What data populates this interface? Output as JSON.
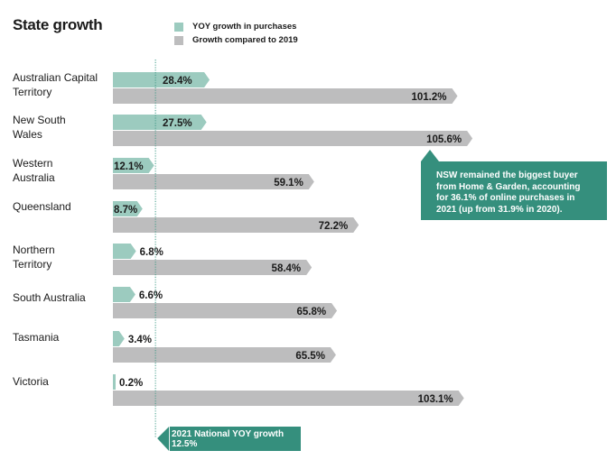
{
  "chart_data": {
    "type": "bar",
    "orientation": "horizontal",
    "title": "State growth",
    "xlabel": "",
    "ylabel": "",
    "xlim": [
      0,
      110
    ],
    "grid": false,
    "legend_position": "top",
    "categories": [
      "Australian Capital\nTerritory",
      "New South\nWales",
      "Western\nAustralia",
      "Queensland",
      "Northern\nTerritory",
      "South Australia",
      "Tasmania",
      "Victoria"
    ],
    "series": [
      {
        "name": "YOY growth in purchases",
        "color": "#9ccbbf",
        "values": [
          28.4,
          27.5,
          12.1,
          8.7,
          6.8,
          6.6,
          3.4,
          0.2
        ],
        "labels": [
          "28.4%",
          "27.5%",
          "12.1%",
          "8.7%",
          "6.8%",
          "6.6%",
          "3.4%",
          "0.2%"
        ]
      },
      {
        "name": "Growth compared to 2019",
        "color": "#bdbdbe",
        "values": [
          101.2,
          105.6,
          59.1,
          72.2,
          58.4,
          65.8,
          65.5,
          103.1
        ],
        "labels": [
          "101.2%",
          "105.6%",
          "59.1%",
          "72.2%",
          "58.4%",
          "65.8%",
          "65.5%",
          "103.1%"
        ]
      }
    ],
    "reference_line": {
      "value": 12.5,
      "label_line1": "2021 National YOY growth",
      "label_line2": "12.5%",
      "color": "#358f7d"
    },
    "annotation": {
      "text": "NSW remained the biggest buyer from Home & Garden, accounting for 36.1% of online purchases in 2021 (up from 31.9% in 2020).",
      "lines": [
        "NSW remained the biggest buyer",
        "from Home & Garden, accounting",
        "for 36.1% of online purchases in",
        "2021 (up from 31.9% in 2020)."
      ],
      "target_category": "New South\nWales",
      "color": "#358f7d"
    }
  }
}
